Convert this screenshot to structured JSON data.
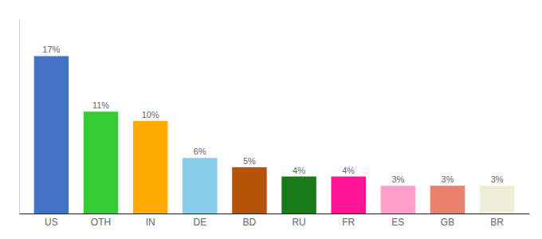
{
  "chart_data": {
    "type": "bar",
    "categories": [
      "US",
      "OTH",
      "IN",
      "DE",
      "BD",
      "RU",
      "FR",
      "ES",
      "GB",
      "BR"
    ],
    "values": [
      17,
      11,
      10,
      6,
      5,
      4,
      4,
      3,
      3,
      3
    ],
    "value_labels": [
      "17%",
      "11%",
      "10%",
      "6%",
      "5%",
      "4%",
      "4%",
      "3%",
      "3%",
      "3%"
    ],
    "colors": [
      "#4472c4",
      "#33cc33",
      "#ffaa00",
      "#87ceeb",
      "#b5530a",
      "#1a7a1a",
      "#ff1493",
      "#ff9fca",
      "#e8826e",
      "#f0edd8"
    ],
    "ylim": [
      0,
      21
    ],
    "data_labels": true,
    "tick_labels": "x",
    "grid": false
  }
}
